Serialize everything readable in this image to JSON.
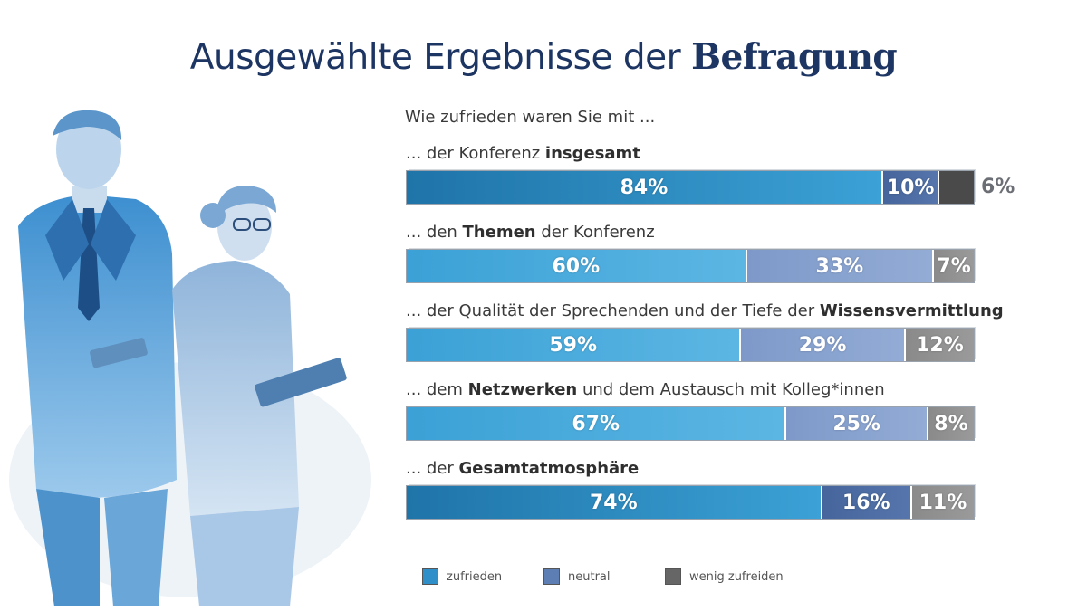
{
  "title_prefix": "Ausgewählte Ergebnisse der",
  "title_bold": "Befragung",
  "question": "Wie zufrieden waren Sie mit ...",
  "colors": {
    "zufrieden_dark": "#1f74a8",
    "zufrieden_light": "#3ba1d6",
    "neutral_dark": "#45659c",
    "neutral_light": "#7e99c9",
    "wenig": "#4a4a4a",
    "wenig_light": "#8a8a8a"
  },
  "legend": [
    {
      "label": "zufrieden",
      "color": "#2e8fc9"
    },
    {
      "label": "neutral",
      "color": "#5d7db5"
    },
    {
      "label": "wenig zufreiden",
      "color": "#666666"
    }
  ],
  "chart_data": {
    "type": "bar",
    "orientation": "horizontal",
    "stacked": true,
    "normalized": true,
    "categories": [
      "... der Konferenz insgesamt",
      "... den Themen der Konferenz",
      "... der Qualität der Sprechenden und der Tiefe der Wissensvermittlung",
      "... dem Netzwerken und dem Austausch mit Kolleg*innen",
      "... der Gesamtatmosphäre"
    ],
    "category_labels": [
      {
        "before": "... der Konferenz ",
        "bold": "insgesamt",
        "after": ""
      },
      {
        "before": "... den ",
        "bold": "Themen",
        "after": " der Konferenz"
      },
      {
        "before": "... der Qualität der Sprechenden und der Tiefe der ",
        "bold": "Wissensvermittlung",
        "after": ""
      },
      {
        "before": "... dem ",
        "bold": "Netzwerken",
        "after": " und dem Austausch mit Kolleg*innen"
      },
      {
        "before": "... der ",
        "bold": "Gesamtatmosphäre",
        "after": ""
      }
    ],
    "series": [
      {
        "name": "zufrieden",
        "values": [
          84,
          60,
          59,
          67,
          74
        ]
      },
      {
        "name": "neutral",
        "values": [
          10,
          33,
          29,
          25,
          16
        ]
      },
      {
        "name": "wenig zufreiden",
        "values": [
          6,
          7,
          12,
          8,
          11
        ]
      }
    ],
    "data_labels": [
      [
        "84%",
        "10%",
        "6%"
      ],
      [
        "60%",
        "33%",
        "7%"
      ],
      [
        "59%",
        "29%",
        "12%"
      ],
      [
        "67%",
        "25%",
        "8%"
      ],
      [
        "74%",
        "16%",
        "11%"
      ]
    ],
    "segment_shades": [
      [
        "dark",
        "dark",
        "dark"
      ],
      [
        "light",
        "light",
        "light"
      ],
      [
        "light",
        "light",
        "light"
      ],
      [
        "light",
        "light",
        "light"
      ],
      [
        "dark",
        "dark",
        "light"
      ]
    ],
    "outside_label_rows": [
      0
    ],
    "xlim": [
      0,
      100
    ],
    "legend_position": "bottom"
  }
}
